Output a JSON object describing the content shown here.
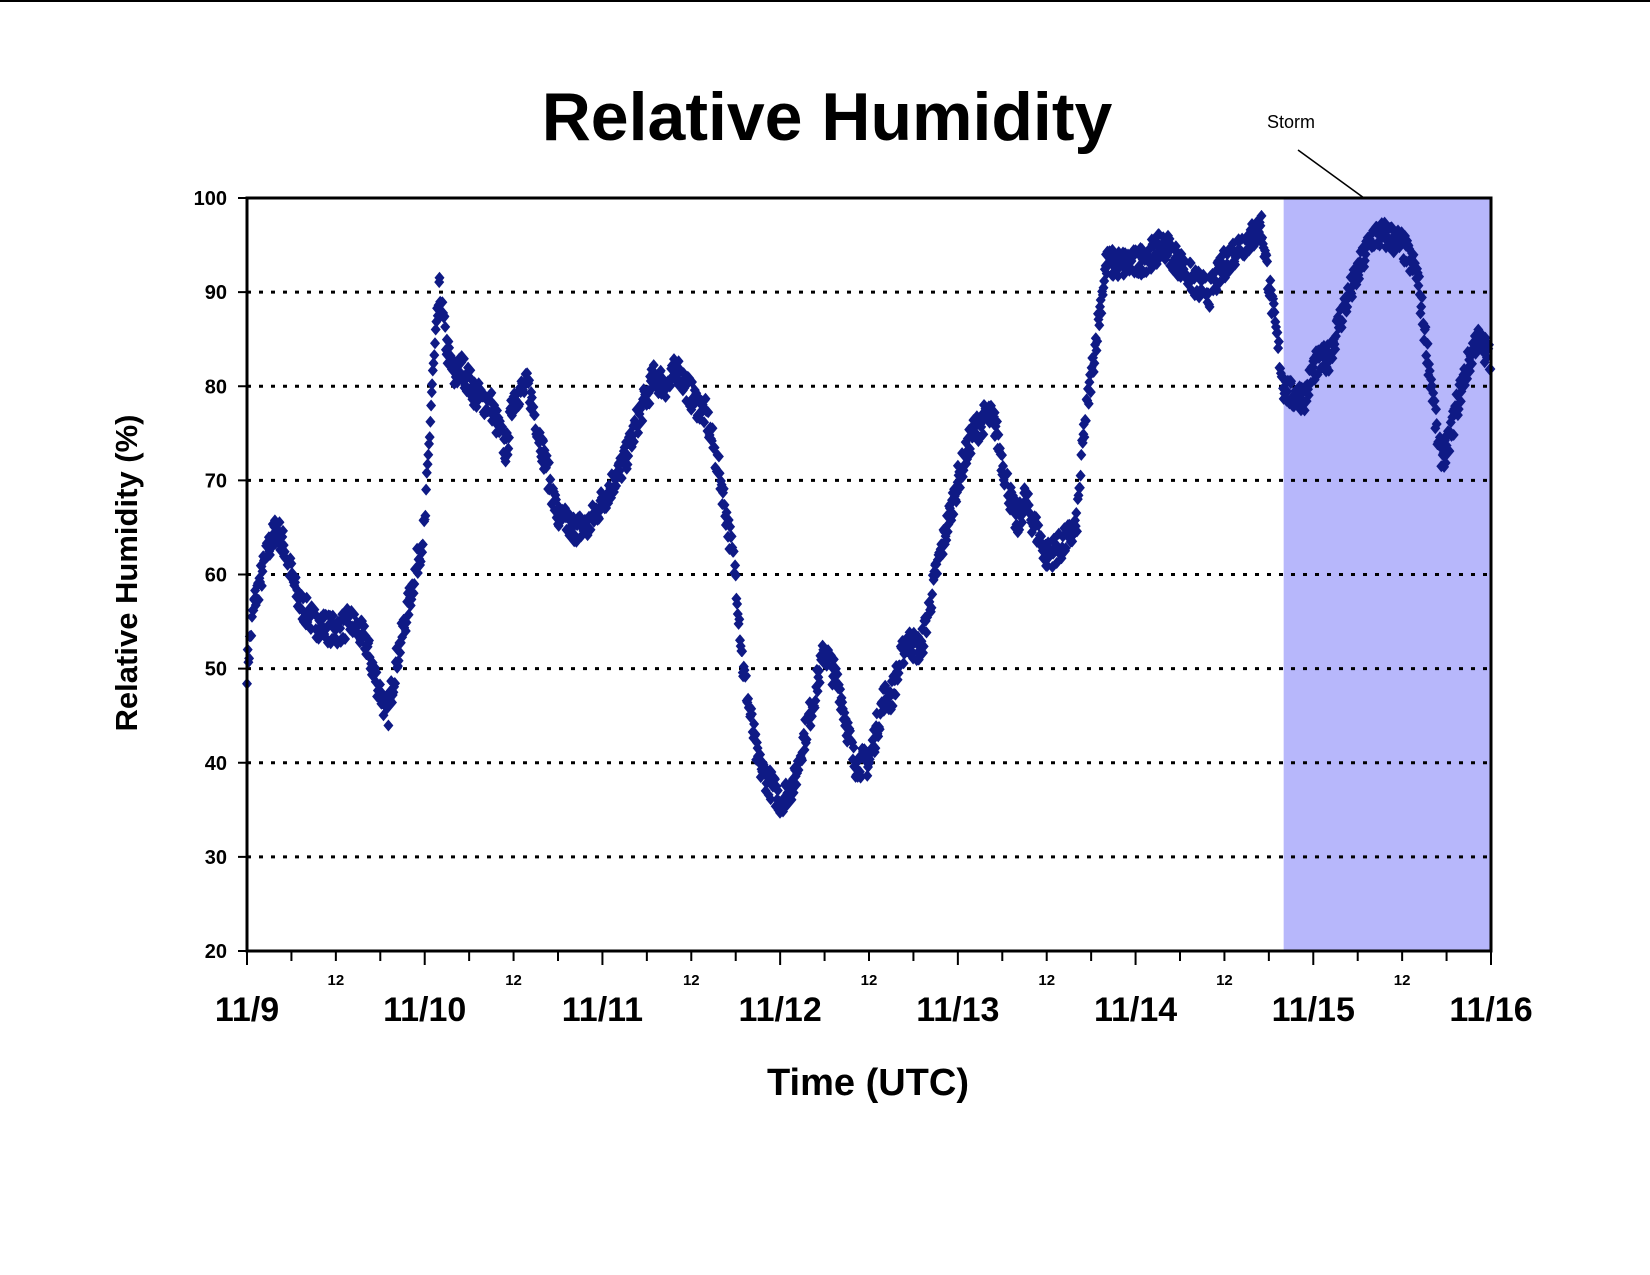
{
  "chart_data": {
    "type": "scatter",
    "title": "Relative Humidity",
    "xlabel": "Time (UTC)",
    "ylabel": "Relative Humidity (%)",
    "ylim": [
      20,
      100
    ],
    "yticks": [
      "20",
      "30",
      "40",
      "50",
      "60",
      "70",
      "80",
      "90",
      "100"
    ],
    "xlim_days": [
      0,
      7
    ],
    "x_major_labels": [
      "11/9",
      "11/10",
      "11/11",
      "11/12",
      "11/13",
      "11/14",
      "11/15",
      "11/16"
    ],
    "x_minor_label": "12",
    "grid": "horizontal dotted at each y tick",
    "marker": "diamond",
    "colors": {
      "series": "#0f1a85",
      "storm_band": "#b7b7fb",
      "axis": "#000000"
    },
    "annotation": {
      "text": "Storm",
      "x_start_date": "11/14 20:00",
      "x_end_date": "11/16 00:00"
    },
    "series": [
      {
        "x_dates": [
          "11/9 00:00",
          "11/9 01:00",
          "11/9 02:00",
          "11/9 03:00",
          "11/9 04:00",
          "11/9 05:00",
          "11/9 06:00",
          "11/9 07:00",
          "11/9 09:00",
          "11/9 12:00",
          "11/9 14:00",
          "11/9 16:00",
          "11/9 17:00",
          "11/9 19:00",
          "11/9 20:00",
          "11/10 00:00",
          "11/10 01:00",
          "11/10 02:00",
          "11/10 03:00",
          "11/10 04:00",
          "11/10 05:00",
          "11/10 07:00",
          "11/10 09:00",
          "11/10 11:00",
          "11/10 12:00",
          "11/10 14:00",
          "11/10 16:00",
          "11/10 18:00",
          "11/10 20:00",
          "11/10 22:00",
          "11/11 03:00",
          "11/11 05:00",
          "11/11 07:00",
          "11/11 09:00",
          "11/11 10:00",
          "11/11 12:00",
          "11/11 14:00",
          "11/11 16:00",
          "11/11 18:00",
          "11/11 19:00",
          "11/11 20:00",
          "11/11 21:00",
          "11/12 00:00",
          "11/12 02:00",
          "11/12 03:00",
          "11/12 04:00",
          "11/12 06:00",
          "11/12 08:00",
          "11/12 10:00",
          "11/12 11:00",
          "11/12 12:00",
          "11/12 14:00",
          "11/12 15:00",
          "11/12 16:00",
          "11/12 17:00",
          "11/12 19:00",
          "11/12 21:00",
          "11/13 00:00",
          "11/13 02:00",
          "11/13 04:00",
          "11/13 05:00",
          "11/13 06:00",
          "11/13 08:00",
          "11/13 09:00",
          "11/13 10:00",
          "11/13 12:00",
          "11/13 14:00",
          "11/13 16:00",
          "11/13 17:00",
          "11/13 19:00",
          "11/13 20:00",
          "11/14 00:00",
          "11/14 02:00",
          "11/14 04:00",
          "11/14 06:00",
          "11/14 08:00",
          "11/14 10:00",
          "11/14 12:00",
          "11/14 14:00",
          "11/14 16:00",
          "11/14 17:00",
          "11/14 18:00",
          "11/14 20:00",
          "11/14 21:00",
          "11/14 23:00",
          "11/15 00:00",
          "11/15 02:00",
          "11/15 04:00",
          "11/15 06:00",
          "11/15 08:00",
          "11/15 10:00",
          "11/15 12:00",
          "11/15 14:00",
          "11/15 16:00",
          "11/15 17:00",
          "11/15 18:00",
          "11/15 20:00",
          "11/15 22:00",
          "11/16 00:00"
        ],
        "y": [
          50,
          57,
          60,
          63,
          65,
          63,
          60,
          57,
          55,
          54,
          55,
          53,
          50,
          45,
          50,
          65,
          80,
          90,
          84,
          81,
          82,
          79,
          78,
          73,
          79,
          80,
          73,
          66,
          65,
          65,
          72,
          77,
          81,
          80,
          82,
          79,
          77,
          70,
          60,
          50,
          45,
          40,
          36,
          38,
          42,
          45,
          52,
          48,
          40,
          40,
          40,
          47,
          47,
          50,
          53,
          52,
          60,
          70,
          75,
          77,
          76,
          72,
          65,
          68,
          66,
          62,
          63,
          65,
          75,
          87,
          93,
          93,
          94,
          95,
          93,
          91,
          90,
          93,
          95,
          96,
          97,
          91,
          80,
          79,
          79,
          82,
          83,
          88,
          92,
          96,
          96,
          95,
          92,
          80,
          73,
          73,
          80,
          85,
          83
        ]
      }
    ]
  }
}
